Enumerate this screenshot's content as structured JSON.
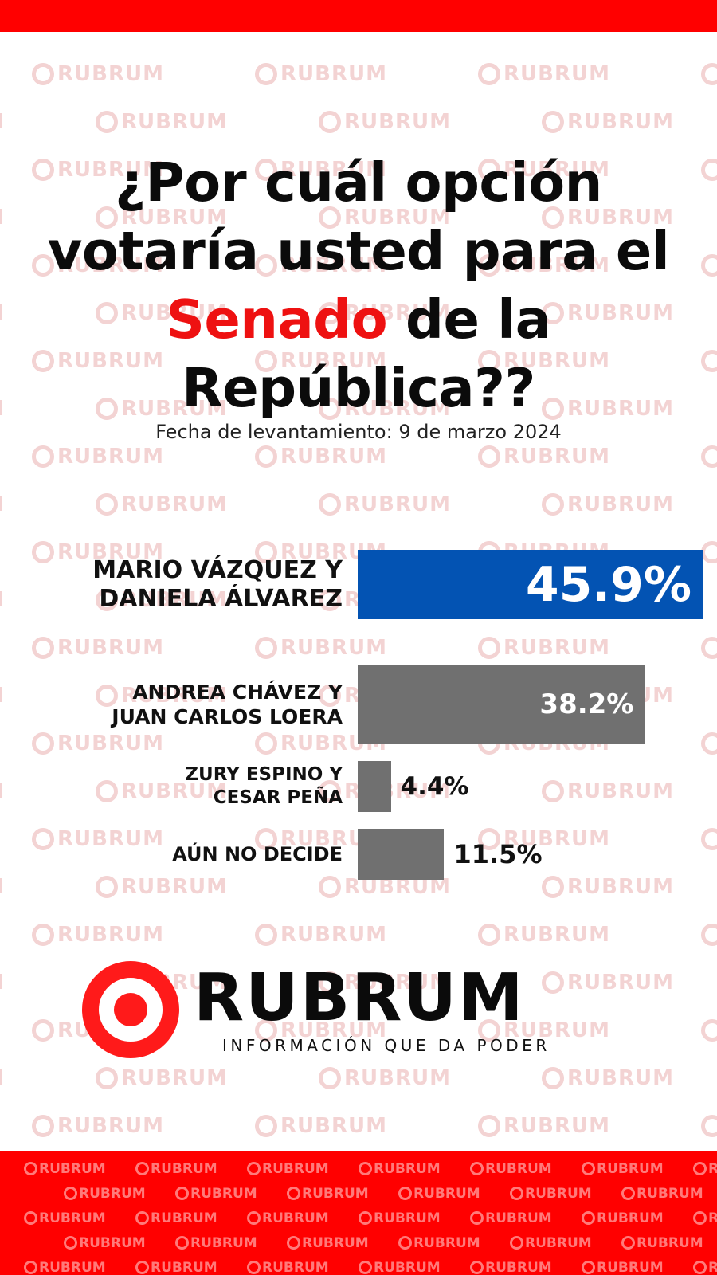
{
  "watermark": "RUBRUM",
  "title": {
    "part1": "¿Por cuál opción votaría usted para el",
    "highlight": "Senado",
    "part2": "de la República??"
  },
  "subtitle": "Fecha de levantamiento: 9 de marzo 2024",
  "colors": {
    "brand_red": "#ff0000",
    "title_highlight": "#ee1111",
    "leader_bar": "#0353b3",
    "other_bar": "#707070"
  },
  "chart_data": {
    "type": "bar",
    "orientation": "horizontal",
    "categories": [
      [
        "MARIO VÁZQUEZ Y",
        "DANIELA ÁLVAREZ"
      ],
      [
        "ANDREA CHÁVEZ Y",
        "JUAN CARLOS LOERA"
      ],
      [
        "ZURY ESPINO Y",
        "CESAR PEÑA"
      ],
      [
        "AÚN NO DECIDE"
      ]
    ],
    "values": [
      45.9,
      38.2,
      4.4,
      11.5
    ],
    "value_labels": [
      "45.9%",
      "38.2%",
      "4.4%",
      "11.5%"
    ],
    "bar_colors": [
      "#0353b3",
      "#707070",
      "#707070",
      "#707070"
    ],
    "unit": "%"
  },
  "logo": {
    "name": "RUBRUM",
    "tagline": "INFORMACIÓN QUE DA PODER"
  }
}
